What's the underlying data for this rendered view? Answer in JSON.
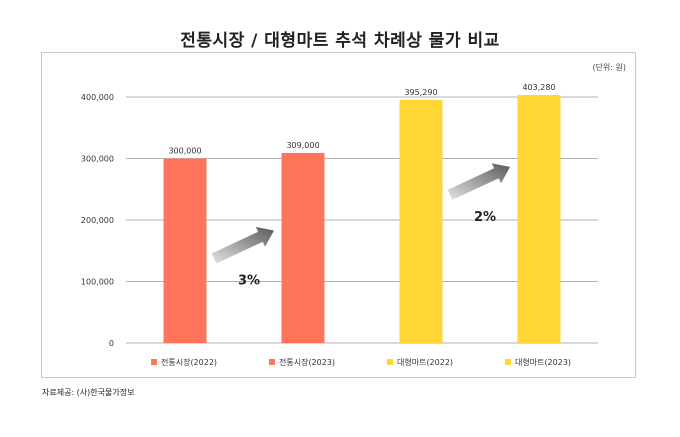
{
  "title": "전통시장 / 대형마트 추석 차례상 물가 비교",
  "unit_note": "(단위: 원)",
  "source_note": "자료제공: (사)한국물가정보",
  "chart_data": {
    "type": "bar",
    "series": [
      {
        "name": "전통시장(2022)",
        "value": 300000,
        "label": "300,000",
        "color": "#ff745b"
      },
      {
        "name": "전통시장(2023)",
        "value": 309000,
        "label": "309,000",
        "color": "#ff745b"
      },
      {
        "name": "대형마트(2022)",
        "value": 395290,
        "label": "395,290",
        "color": "#ffd635"
      },
      {
        "name": "대형마트(2023)",
        "value": 403280,
        "label": "403,280",
        "color": "#ffd635"
      }
    ],
    "ylim": [
      0,
      400000
    ],
    "yticks": [
      0,
      100000,
      200000,
      300000,
      400000
    ],
    "ytick_labels": [
      "0",
      "100,000",
      "200,000",
      "300,000",
      "400,000"
    ],
    "grid": true,
    "legend_position": "bottom",
    "annotations": [
      {
        "text": "3%",
        "between": [
          "전통시장(2022)",
          "전통시장(2023)"
        ]
      },
      {
        "text": "2%",
        "between": [
          "대형마트(2022)",
          "대형마트(2023)"
        ]
      }
    ]
  }
}
